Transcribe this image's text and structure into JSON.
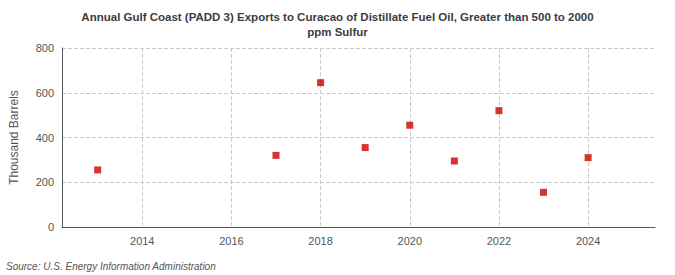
{
  "chart_data": {
    "type": "scatter",
    "title": "Annual Gulf Coast (PADD 3) Exports to Curacao of Distillate Fuel Oil, Greater than 500 to 2000\nppm Sulfur",
    "ylabel": "Thousand Barrels",
    "annotation": "Source: U.S. Energy Information Administration",
    "x": [
      2013,
      2017,
      2018,
      2019,
      2020,
      2021,
      2022,
      2023,
      2024
    ],
    "values": [
      255,
      320,
      645,
      355,
      455,
      295,
      520,
      155,
      310
    ],
    "color": "#cc0000",
    "marker": "square",
    "xlim": [
      2012.2,
      2025.5
    ],
    "ylim": [
      0,
      800
    ],
    "xticks": [
      2014,
      2016,
      2018,
      2020,
      2022,
      2024
    ],
    "yticks": [
      0,
      200,
      400,
      600,
      800
    ],
    "grid": true
  }
}
